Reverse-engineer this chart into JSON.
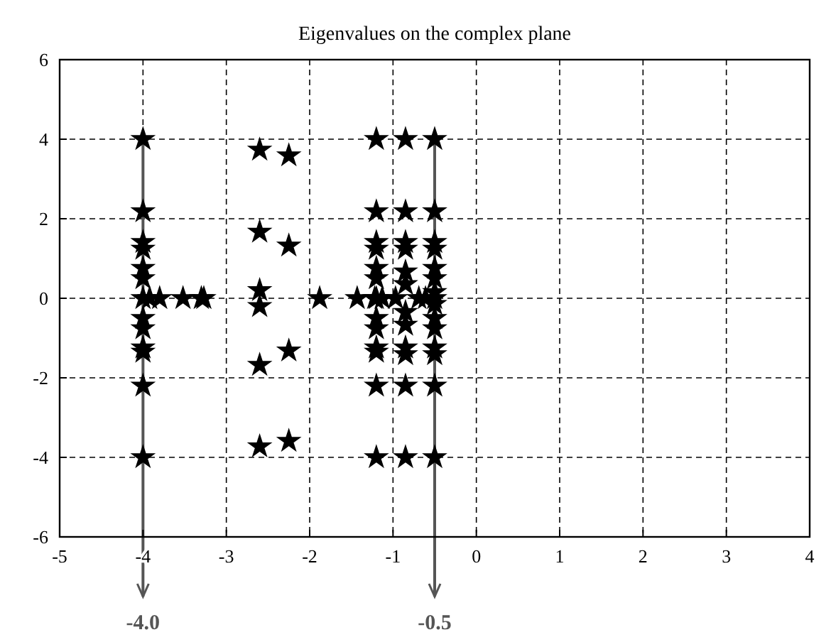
{
  "chart_data": {
    "type": "scatter",
    "title": "Eigenvalues on the complex plane",
    "series": [
      {
        "color": "#000000",
        "x": [
          -4,
          -4,
          -4,
          -4,
          -4,
          -4,
          -4,
          -4,
          -4,
          -4,
          -4,
          -4,
          -4,
          -3.92,
          -3.8,
          -3.52,
          -3.3,
          -3.27,
          -2.6,
          -2.6,
          -2.6,
          -2.6,
          -2.6,
          -2.6,
          -2.25,
          -2.25,
          -2.25,
          -2.25,
          -1.88,
          -1.43,
          -1.22,
          -1.13,
          -1.2,
          -1.2,
          -1.2,
          -1.2,
          -1.2,
          -1.2,
          -1.2,
          -1.2,
          -1.2,
          -1.2,
          -1.2,
          -1.2,
          -1.2,
          -0.97,
          -0.85,
          -0.85,
          -0.85,
          -0.85,
          -0.85,
          -0.85,
          -0.85,
          -0.85,
          -0.85,
          -0.85,
          -0.85,
          -0.85,
          -0.69,
          -0.61,
          -0.5,
          -0.5,
          -0.5,
          -0.5,
          -0.5,
          -0.5,
          -0.5,
          -0.5,
          -0.5,
          -0.5,
          -0.5,
          -0.5,
          -0.5,
          -0.5,
          -0.5
        ],
        "values": [
          4,
          2.18,
          1.41,
          1.24,
          0.76,
          0.5,
          0,
          -0.5,
          -0.76,
          -1.24,
          -1.35,
          -2.2,
          -4,
          0,
          0,
          0,
          0,
          0,
          3.73,
          1.67,
          0.2,
          -0.2,
          -1.68,
          -3.73,
          3.59,
          1.32,
          -1.32,
          -3.59,
          0,
          0,
          0,
          0,
          4,
          2.18,
          1.41,
          1.24,
          0.76,
          0.5,
          0,
          -0.5,
          -0.76,
          -1.24,
          -1.35,
          -2.2,
          -4,
          0,
          4,
          2.18,
          1.41,
          1.24,
          0.67,
          0.35,
          -0.35,
          -0.67,
          -1.24,
          -1.41,
          -2.2,
          -4,
          0,
          0,
          4,
          2.18,
          1.41,
          1.24,
          0.76,
          0.5,
          0.15,
          0,
          -0.15,
          -0.5,
          -0.76,
          -1.24,
          -1.41,
          -2.2,
          -4
        ]
      }
    ],
    "xlim": [
      -5,
      4
    ],
    "xticks": [
      -5,
      -4,
      -3,
      -2,
      -1,
      0,
      1,
      2,
      3,
      4
    ],
    "ylim": [
      -6,
      6
    ],
    "yticks": [
      -6,
      -4,
      -2,
      0,
      2,
      4,
      6
    ],
    "grid": true,
    "marker": "star",
    "ref_lines": [
      {
        "axis": "x",
        "value": -4,
        "label": "-4.0",
        "color": "#555555"
      },
      {
        "axis": "x",
        "value": -0.5,
        "label": "-0.5",
        "color": "#555555"
      }
    ]
  }
}
